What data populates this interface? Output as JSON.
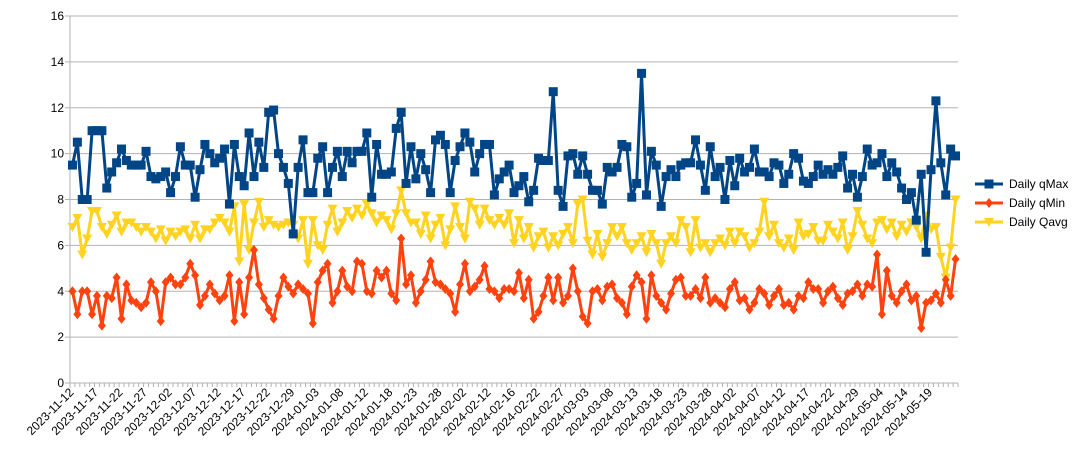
{
  "chart_data": {
    "type": "line",
    "title": "",
    "xlabel": "",
    "ylabel": "",
    "ylim": [
      0,
      16
    ],
    "y_ticks": [
      0,
      2,
      4,
      6,
      8,
      10,
      12,
      14,
      16
    ],
    "grid": true,
    "legend_position": "right",
    "x_tick_every": 5,
    "x_tick_labels": [
      "2023-11-12",
      "2023-11-17",
      "2023-11-22",
      "2023-11-27",
      "2023-12-02",
      "2023-12-07",
      "2023-12-12",
      "2023-12-17",
      "2023-12-22",
      "2023-12-29",
      "2024-01-03",
      "2024-01-08",
      "2024-01-12",
      "2024-01-18",
      "2024-01-23",
      "2024-01-28",
      "2024-02-02",
      "2024-02-12",
      "2024-02-16",
      "2024-02-22",
      "2024-02-27",
      "2024-03-03",
      "2024-03-08",
      "2024-03-13",
      "2024-03-18",
      "2024-03-23",
      "2024-03-28",
      "2024-04-02",
      "2024-04-07",
      "2024-04-12",
      "2024-04-17",
      "2024-04-22",
      "2024-04-29",
      "2024-05-04",
      "2024-05-14",
      "2024-05-19"
    ],
    "series": [
      {
        "name": "Daily qMax",
        "color": "#004586",
        "marker": "square",
        "values": [
          9.5,
          10.5,
          8,
          8,
          11,
          11,
          11,
          8.5,
          9.2,
          9.6,
          10.2,
          9.7,
          9.5,
          9.5,
          9.5,
          10.1,
          9,
          8.9,
          9,
          9.2,
          8.3,
          9,
          10.3,
          9.5,
          9.5,
          8.1,
          9.3,
          10.4,
          10,
          9.6,
          9.8,
          10.2,
          7.8,
          10.4,
          9,
          8.6,
          10.9,
          9.0,
          10.5,
          9.4,
          11.8,
          11.9,
          10,
          9.4,
          8.7,
          6.5,
          9.4,
          10.6,
          8.3,
          8.3,
          9.8,
          10.3,
          8.3,
          9.4,
          10.1,
          9.0,
          10.1,
          9.6,
          10.1,
          10.1,
          10.9,
          8.1,
          10.4,
          9.1,
          9.1,
          9.2,
          11.1,
          11.8,
          8.7,
          10.3,
          8.9,
          10,
          9.3,
          8.3,
          10.6,
          10.8,
          10.4,
          8.3,
          9.7,
          10.3,
          10.9,
          10.5,
          9.2,
          10,
          10.4,
          10.4,
          8.2,
          8.9,
          9.2,
          9.5,
          8.3,
          8.6,
          9,
          7.9,
          8.4,
          9.8,
          9.7,
          9.7,
          12.7,
          8.4,
          7.7,
          9.9,
          10,
          9.1,
          9.9,
          9.1,
          8.4,
          8.4,
          7.8,
          9.4,
          9.2,
          9.4,
          10.4,
          10.3,
          8.1,
          8.7,
          13.5,
          8.2,
          10.1,
          9.5,
          7.7,
          9.0,
          9.3,
          9.0,
          9.5,
          9.6,
          9.6,
          10.6,
          9.5,
          8.4,
          10.3,
          9,
          9.4,
          8,
          9.7,
          8.6,
          9.8,
          9.2,
          9.4,
          10.2,
          9.2,
          9.2,
          9.0,
          9.6,
          9.5,
          8.7,
          9.1,
          10,
          9.8,
          8.8,
          8.7,
          9,
          9.5,
          9.1,
          9.3,
          9.1,
          9.4,
          9.9,
          8.5,
          9.1,
          8.1,
          9,
          10.2,
          9.5,
          9.6,
          10,
          9.0,
          9.6,
          9.2,
          8.5,
          8.0,
          8.3,
          7.1,
          9.1,
          5.7,
          9.3,
          12.3,
          9.6,
          8.2,
          10.2,
          9.9
        ]
      },
      {
        "name": "Daily qMin",
        "color": "#ff420e",
        "marker": "diamond",
        "values": [
          4,
          3,
          4,
          4,
          3,
          3.8,
          2.5,
          3.8,
          3.7,
          4.6,
          2.8,
          4.3,
          3.6,
          3.5,
          3.3,
          3.5,
          4.4,
          4.0,
          2.7,
          4.4,
          4.6,
          4.3,
          4.3,
          4.6,
          5.2,
          4.7,
          3.4,
          3.8,
          4.3,
          3.9,
          3.6,
          3.8,
          4.7,
          2.7,
          4.4,
          3.0,
          4.6,
          5.8,
          4.3,
          3.7,
          3.2,
          2.8,
          3.8,
          4.6,
          4.2,
          3.9,
          4.3,
          4.1,
          3.9,
          2.6,
          4.4,
          4.9,
          5.2,
          3.5,
          4.0,
          4.9,
          4.2,
          4.0,
          5.3,
          5.2,
          4.0,
          3.9,
          4.9,
          4.6,
          4.9,
          3.9,
          3.6,
          6.3,
          4.3,
          4.7,
          3.5,
          4.0,
          4.5,
          5.3,
          4.4,
          4.3,
          4.1,
          3.9,
          3.1,
          4.3,
          5.2,
          4.0,
          4.2,
          4.5,
          5.1,
          4.1,
          4.0,
          3.7,
          4.1,
          4.1,
          4.0,
          4.8,
          3.7,
          4.5,
          2.8,
          3.1,
          3.8,
          4.6,
          3.6,
          4.6,
          3.5,
          3.8,
          5.0,
          4.0,
          2.9,
          2.6,
          4.0,
          4.1,
          3.6,
          4.2,
          4.3,
          3.7,
          3.5,
          3.0,
          4.2,
          4.7,
          4.4,
          2.8,
          4.7,
          3.8,
          3.5,
          3.2,
          3.9,
          4.5,
          4.6,
          3.8,
          3.8,
          4.1,
          3.7,
          4.6,
          3.5,
          3.7,
          3.5,
          3.3,
          4.1,
          4.4,
          3.6,
          3.7,
          3.2,
          3.5,
          4.1,
          3.9,
          3.4,
          3.8,
          4.1,
          3.4,
          3.5,
          3.2,
          3.8,
          3.7,
          4.4,
          4.1,
          4.1,
          3.5,
          4.0,
          4.2,
          3.7,
          3.4,
          3.9,
          4.0,
          4.3,
          3.8,
          4.3,
          4.2,
          5.6,
          3.0,
          4.9,
          3.8,
          3.5,
          4.0,
          4.3,
          3.6,
          3.8,
          2.4,
          3.5,
          3.6,
          3.9,
          3.5,
          4.5,
          3.8,
          5.4
        ]
      },
      {
        "name": "Daily Qavg",
        "color": "#ffd320",
        "marker": "triangle-down",
        "values": [
          6.8,
          7.2,
          5.6,
          6.3,
          7.5,
          7.5,
          6.8,
          6.5,
          6.9,
          7.3,
          6.6,
          7.0,
          7.0,
          6.8,
          6.6,
          6.8,
          6.6,
          6.3,
          6.7,
          6.2,
          6.6,
          6.4,
          6.6,
          6.7,
          6.3,
          6.9,
          6.3,
          6.7,
          6.7,
          7.0,
          7.2,
          7.0,
          6.6,
          7.7,
          5.3,
          7.8,
          5.8,
          7.0,
          7.9,
          6.8,
          7.1,
          6.9,
          6.8,
          6.9,
          7.0,
          6.9,
          6.3,
          7.1,
          5.2,
          7.1,
          6.0,
          5.8,
          6.9,
          7.6,
          6.6,
          7.0,
          7.5,
          7.2,
          7.6,
          7.3,
          7.8,
          7.4,
          7.0,
          7.3,
          7.1,
          6.7,
          7.4,
          8.4,
          7.4,
          7.0,
          7.0,
          6.5,
          7.3,
          6.3,
          6.9,
          7.2,
          6.0,
          6.7,
          7.7,
          6.8,
          6.3,
          7.9,
          7.6,
          6.9,
          7.6,
          7.1,
          6.9,
          7.2,
          6.9,
          7.4,
          6.1,
          7.1,
          6.3,
          6.8,
          5.9,
          6.4,
          6.6,
          5.9,
          6.4,
          6.0,
          6.5,
          6.8,
          6.1,
          7.8,
          8.0,
          6.2,
          5.6,
          6.5,
          5.5,
          6.1,
          6.8,
          6.4,
          6.8,
          6.1,
          5.8,
          6.1,
          6.4,
          5.7,
          6.5,
          6.1,
          5.2,
          6.1,
          6.4,
          6.1,
          7.1,
          6.8,
          5.7,
          7.1,
          5.9,
          6.1,
          5.7,
          6.1,
          6.3,
          6.0,
          6.6,
          6.1,
          6.6,
          6.4,
          5.9,
          6.1,
          6.6,
          7.9,
          6.4,
          6.9,
          6.1,
          5.9,
          6.3,
          5.8,
          7.0,
          6.4,
          6.5,
          6.8,
          6.2,
          6.2,
          6.9,
          6.6,
          6.3,
          7.0,
          5.8,
          6.4,
          7.5,
          6.9,
          6.3,
          6.1,
          7.0,
          7.1,
          6.7,
          7.0,
          6.4,
          6.9,
          6.6,
          7.0,
          6.8,
          6.3,
          7.3,
          6.7,
          6.8,
          5.5,
          4.6,
          5.9,
          8.0
        ]
      }
    ]
  }
}
